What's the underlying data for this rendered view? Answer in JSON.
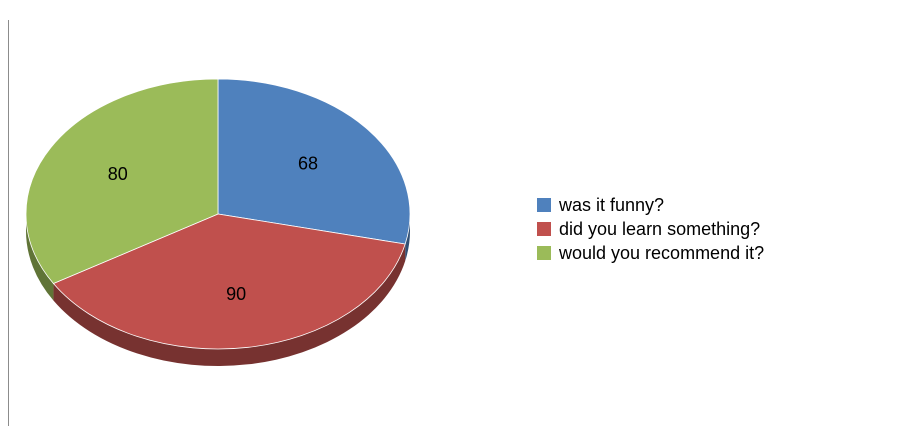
{
  "chart_data": {
    "type": "pie",
    "title": "",
    "series": [
      {
        "label": "was it funny?",
        "value": 68,
        "color": "#4F81BD"
      },
      {
        "label": "did you learn something?",
        "value": 90,
        "color": "#C0504D"
      },
      {
        "label": "would you recommend it?",
        "value": 80,
        "color": "#9BBB59"
      }
    ],
    "start_angle": "12 o'clock",
    "direction": "clockwise",
    "style": "3d-tilted",
    "legend_position": "right"
  }
}
